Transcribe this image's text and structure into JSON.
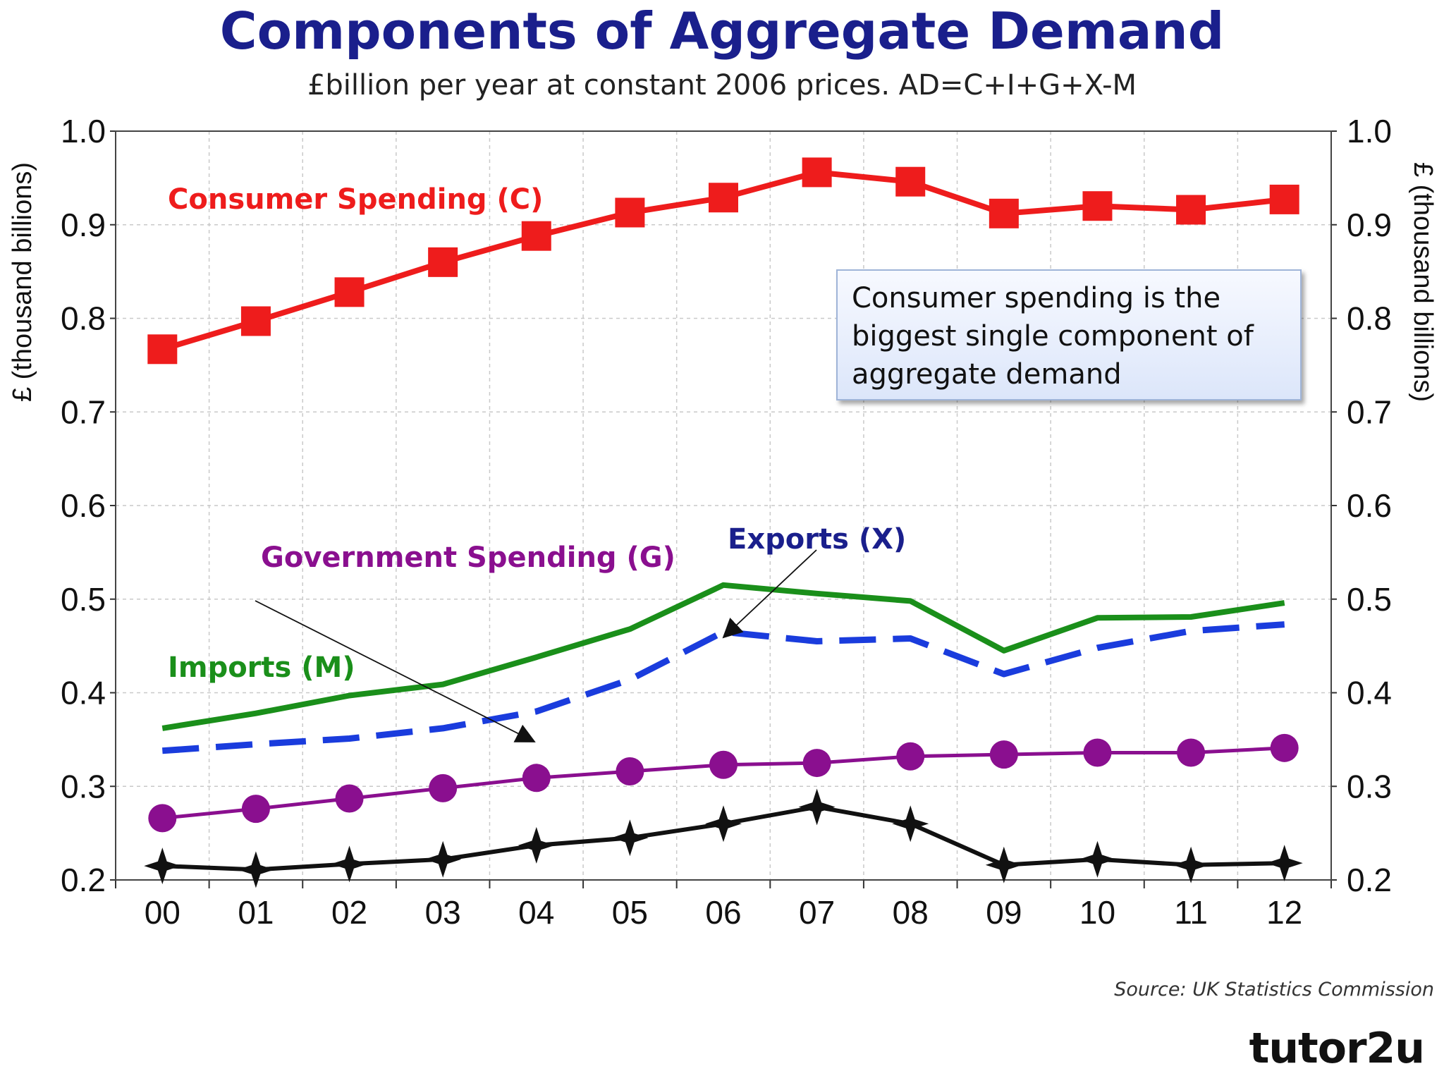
{
  "title": "Components of Aggregate Demand",
  "subtitle": "£billion per year at constant 2006 prices. AD=C+I+G+X-M",
  "note": "Consumer spending is the biggest single component of aggregate demand",
  "source": "Source: UK Statistics Commission",
  "logo": "tutor2u",
  "chart_data": {
    "type": "line",
    "categories": [
      "00",
      "01",
      "02",
      "03",
      "04",
      "05",
      "06",
      "07",
      "08",
      "09",
      "10",
      "11",
      "12"
    ],
    "ylabel_left": "£ (thousand billions)",
    "ylabel_right": "£ (thousand billions)",
    "ylim": [
      0.2,
      1.0
    ],
    "yticks": [
      "0.2",
      "0.3",
      "0.4",
      "0.5",
      "0.6",
      "0.7",
      "0.8",
      "0.9",
      "1.0"
    ],
    "grid": true,
    "series": [
      {
        "name": "Consumer Spending (C)",
        "color": "#ee1c1c",
        "marker": "square",
        "dash": "solid",
        "values": [
          0.767,
          0.797,
          0.828,
          0.86,
          0.888,
          0.913,
          0.929,
          0.956,
          0.946,
          0.912,
          0.92,
          0.916,
          0.927
        ]
      },
      {
        "name": "Imports (M)",
        "color": "#1a8f1a",
        "marker": "none",
        "dash": "solid",
        "values": [
          0.362,
          0.378,
          0.397,
          0.409,
          0.438,
          0.468,
          0.515,
          0.506,
          0.498,
          0.445,
          0.48,
          0.481,
          0.496
        ]
      },
      {
        "name": "Exports (X)",
        "color": "#1a3cdd",
        "marker": "none",
        "dash": "dashed",
        "values": [
          0.338,
          0.345,
          0.351,
          0.362,
          0.38,
          0.414,
          0.465,
          0.455,
          0.458,
          0.42,
          0.448,
          0.466,
          0.473
        ]
      },
      {
        "name": "Government Spending (G)",
        "color": "#8a0f8f",
        "marker": "circle",
        "dash": "solid",
        "values": [
          0.266,
          0.276,
          0.287,
          0.298,
          0.309,
          0.316,
          0.323,
          0.325,
          0.332,
          0.334,
          0.336,
          0.336,
          0.341
        ]
      },
      {
        "name": "",
        "color": "#111111",
        "marker": "star",
        "dash": "solid",
        "values": [
          0.215,
          0.211,
          0.217,
          0.222,
          0.237,
          0.245,
          0.26,
          0.278,
          0.26,
          0.216,
          0.222,
          0.216,
          0.218
        ]
      }
    ],
    "series_labels": [
      {
        "text": "Consumer Spending (C)",
        "color": "#ee1c1c"
      },
      {
        "text": "Government Spending (G)",
        "color": "#8a0f8f"
      },
      {
        "text": "Exports (X)",
        "color": "#1a1f8c"
      },
      {
        "text": "Imports (M)",
        "color": "#1a8f1a"
      }
    ]
  }
}
